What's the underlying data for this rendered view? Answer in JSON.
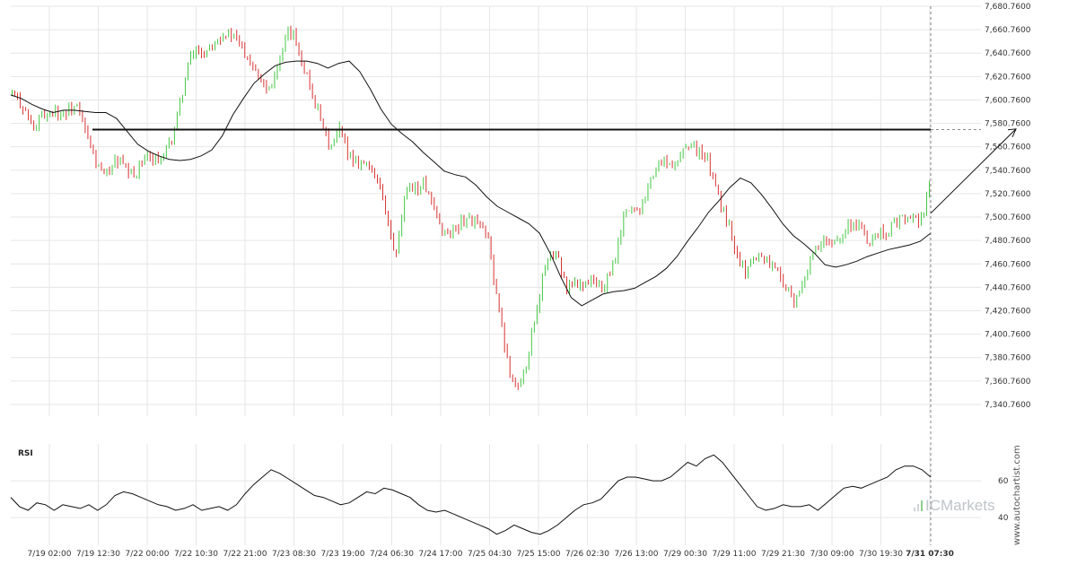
{
  "brand": {
    "name": "ICMarkets",
    "credit": "www.autochartist.com"
  },
  "rsi_panel": {
    "title": "RSI",
    "ticks": [
      "60",
      "40"
    ]
  },
  "chart_data": {
    "type": "candlestick",
    "x_tick_labels": [
      "7/19 02:00",
      "7/19 12:30",
      "7/22 00:00",
      "7/22 10:30",
      "7/22 21:00",
      "7/23 08:30",
      "7/23 19:00",
      "7/24 06:30",
      "7/24 17:00",
      "7/25 04:30",
      "7/25 15:00",
      "7/26 02:30",
      "7/26 13:00",
      "7/29 00:30",
      "7/29 11:00",
      "7/29 21:30",
      "7/30 09:00",
      "7/30 19:30",
      "7/31 07:30"
    ],
    "y_tick_labels": [
      "7,680.7600",
      "7,660.7600",
      "7,640.7600",
      "7,620.7600",
      "7,600.7600",
      "7,580.7600",
      "7,560.7600",
      "7,540.7600",
      "7,520.7600",
      "7,500.7600",
      "7,480.7600",
      "7,460.7600",
      "7,440.7600",
      "7,420.7600",
      "7,400.7600",
      "7,380.7600",
      "7,360.7600",
      "7,340.7600"
    ],
    "ylim": [
      7330.76,
      7680.76
    ],
    "resistance_level": 7575.5,
    "forecast": {
      "from": 7504,
      "to": 7576
    },
    "price_path": [
      7605,
      7600,
      7590,
      7575,
      7585,
      7590,
      7593,
      7588,
      7592,
      7596,
      7580,
      7560,
      7545,
      7535,
      7545,
      7550,
      7540,
      7535,
      7545,
      7550,
      7553,
      7548,
      7560,
      7580,
      7610,
      7635,
      7645,
      7640,
      7650,
      7655,
      7658,
      7655,
      7648,
      7640,
      7630,
      7620,
      7610,
      7625,
      7640,
      7660,
      7650,
      7630,
      7610,
      7590,
      7570,
      7560,
      7575,
      7560,
      7550,
      7548,
      7545,
      7538,
      7520,
      7490,
      7465,
      7510,
      7530,
      7525,
      7530,
      7510,
      7495,
      7485,
      7490,
      7495,
      7500,
      7498,
      7490,
      7480,
      7440,
      7400,
      7370,
      7355,
      7365,
      7400,
      7430,
      7460,
      7470,
      7460,
      7440,
      7445,
      7442,
      7447,
      7445,
      7440,
      7450,
      7470,
      7500,
      7510,
      7505,
      7520,
      7535,
      7545,
      7550,
      7540,
      7555,
      7565,
      7560,
      7555,
      7545,
      7525,
      7505,
      7490,
      7470,
      7455,
      7462,
      7470,
      7465,
      7460,
      7450,
      7440,
      7425,
      7440,
      7460,
      7470,
      7480,
      7475,
      7483,
      7490,
      7495,
      7495,
      7483,
      7480,
      7490,
      7488,
      7495,
      7498,
      7500,
      7497,
      7500,
      7525
    ],
    "sma_path": [
      7605,
      7602,
      7597,
      7593,
      7590,
      7592,
      7592,
      7591,
      7590,
      7590,
      7585,
      7574,
      7563,
      7557,
      7553,
      7550,
      7549,
      7550,
      7553,
      7558,
      7570,
      7588,
      7602,
      7615,
      7623,
      7630,
      7633,
      7634,
      7634,
      7632,
      7628,
      7632,
      7634,
      7625,
      7610,
      7593,
      7580,
      7572,
      7565,
      7556,
      7548,
      7540,
      7537,
      7535,
      7528,
      7518,
      7510,
      7505,
      7500,
      7495,
      7487,
      7470,
      7450,
      7432,
      7425,
      7430,
      7435,
      7437,
      7438,
      7440,
      7445,
      7450,
      7457,
      7467,
      7480,
      7492,
      7505,
      7515,
      7526,
      7534,
      7530,
      7520,
      7508,
      7495,
      7485,
      7478,
      7470,
      7460,
      7458,
      7460,
      7463,
      7467,
      7470,
      7473,
      7475,
      7477,
      7480,
      7487
    ],
    "rsi_path": [
      51,
      46,
      44,
      48,
      47,
      44,
      47,
      46,
      45,
      47,
      44,
      47,
      52,
      54,
      53,
      51,
      49,
      47,
      46,
      44,
      45,
      47,
      44,
      45,
      46,
      44,
      47,
      53,
      58,
      62,
      66,
      64,
      61,
      58,
      55,
      52,
      51,
      49,
      47,
      48,
      51,
      54,
      53,
      56,
      55,
      53,
      51,
      47,
      44,
      43,
      44,
      42,
      40,
      38,
      36,
      34,
      31,
      33,
      36,
      34,
      32,
      31,
      33,
      36,
      40,
      44,
      47,
      48,
      50,
      55,
      60,
      62,
      62,
      61,
      60,
      60,
      62,
      66,
      70,
      68,
      72,
      74,
      70,
      64,
      58,
      52,
      46,
      44,
      45,
      47,
      46,
      46,
      47,
      44,
      48,
      52,
      56,
      57,
      56,
      58,
      60,
      62,
      66,
      68,
      68,
      66,
      62
    ],
    "rsi_ticks": [
      60,
      40
    ]
  }
}
